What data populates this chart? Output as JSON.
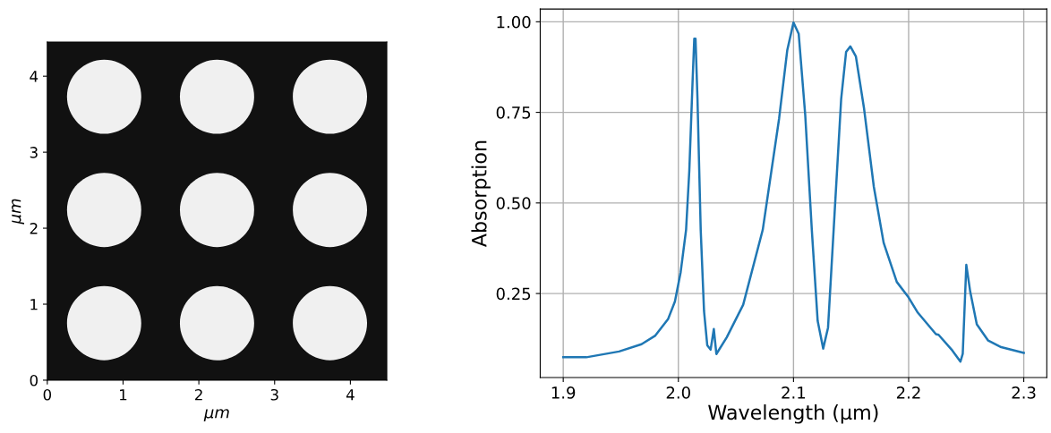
{
  "chart_data": [
    {
      "type": "bubble",
      "xlabel": "μm",
      "ylabel": "μm",
      "xlim": [
        0,
        4.48
      ],
      "ylim": [
        0,
        4.45
      ],
      "xticks": [
        0,
        1,
        2,
        3,
        4
      ],
      "yticks": [
        0,
        1,
        2,
        3,
        4
      ],
      "series": [
        {
          "color": "#f0f0f0",
          "x": [
            0.75,
            2.24,
            3.73,
            0.75,
            2.24,
            3.73,
            0.75,
            2.24,
            3.73
          ],
          "values": [
            0.75,
            0.75,
            0.75,
            2.24,
            2.24,
            2.24,
            3.73,
            3.73,
            3.73
          ],
          "sizes": [
            1,
            1,
            1,
            1,
            1,
            1,
            1,
            1,
            1
          ]
        }
      ]
    },
    {
      "type": "line",
      "xlabel": "Wavelength (μm)",
      "ylabel": "Absorption",
      "xlim": [
        1.88,
        2.32
      ],
      "ylim": [
        0.018,
        1.035
      ],
      "xticks": [
        {
          "value": 1.9,
          "label": "1.9"
        },
        {
          "value": 2.0,
          "label": "2.0"
        },
        {
          "value": 2.1,
          "label": "2.1"
        },
        {
          "value": 2.2,
          "label": "2.2"
        },
        {
          "value": 2.3,
          "label": "2.3"
        }
      ],
      "yticks": [
        {
          "value": 0.25,
          "label": "0.25"
        },
        {
          "value": 0.5,
          "label": "0.50"
        },
        {
          "value": 0.75,
          "label": "0.75"
        },
        {
          "value": 1.0,
          "label": "1.00"
        }
      ],
      "grid": true,
      "series": [
        {
          "color": "#1f77b4",
          "x": [
            1.9,
            1.92,
            1.9485,
            1.968,
            1.98,
            1.991,
            1.997,
            2.002,
            2.0067,
            2.0095,
            2.0123,
            2.0138,
            2.0149,
            2.0166,
            2.0194,
            2.0223,
            2.0251,
            2.028,
            2.0308,
            2.033,
            2.042,
            2.0563,
            2.0733,
            2.0875,
            2.0946,
            2.1,
            2.1045,
            2.1102,
            2.1159,
            2.121,
            2.1258,
            2.13,
            2.1357,
            2.1414,
            2.1457,
            2.1494,
            2.1542,
            2.1613,
            2.1698,
            2.1783,
            2.1897,
            2.2,
            2.208,
            2.2237,
            2.226,
            2.2379,
            2.245,
            2.247,
            2.2501,
            2.2535,
            2.2592,
            2.2691,
            2.2804,
            2.3
          ],
          "values": [
            0.074,
            0.074,
            0.09,
            0.11,
            0.134,
            0.179,
            0.228,
            0.309,
            0.426,
            0.589,
            0.832,
            0.953,
            0.953,
            0.787,
            0.426,
            0.201,
            0.107,
            0.095,
            0.152,
            0.083,
            0.129,
            0.219,
            0.426,
            0.733,
            0.922,
            0.998,
            0.967,
            0.742,
            0.426,
            0.174,
            0.098,
            0.156,
            0.472,
            0.787,
            0.917,
            0.932,
            0.904,
            0.76,
            0.544,
            0.39,
            0.282,
            0.239,
            0.197,
            0.138,
            0.136,
            0.093,
            0.062,
            0.084,
            0.329,
            0.255,
            0.165,
            0.12,
            0.102,
            0.086
          ]
        }
      ]
    }
  ]
}
